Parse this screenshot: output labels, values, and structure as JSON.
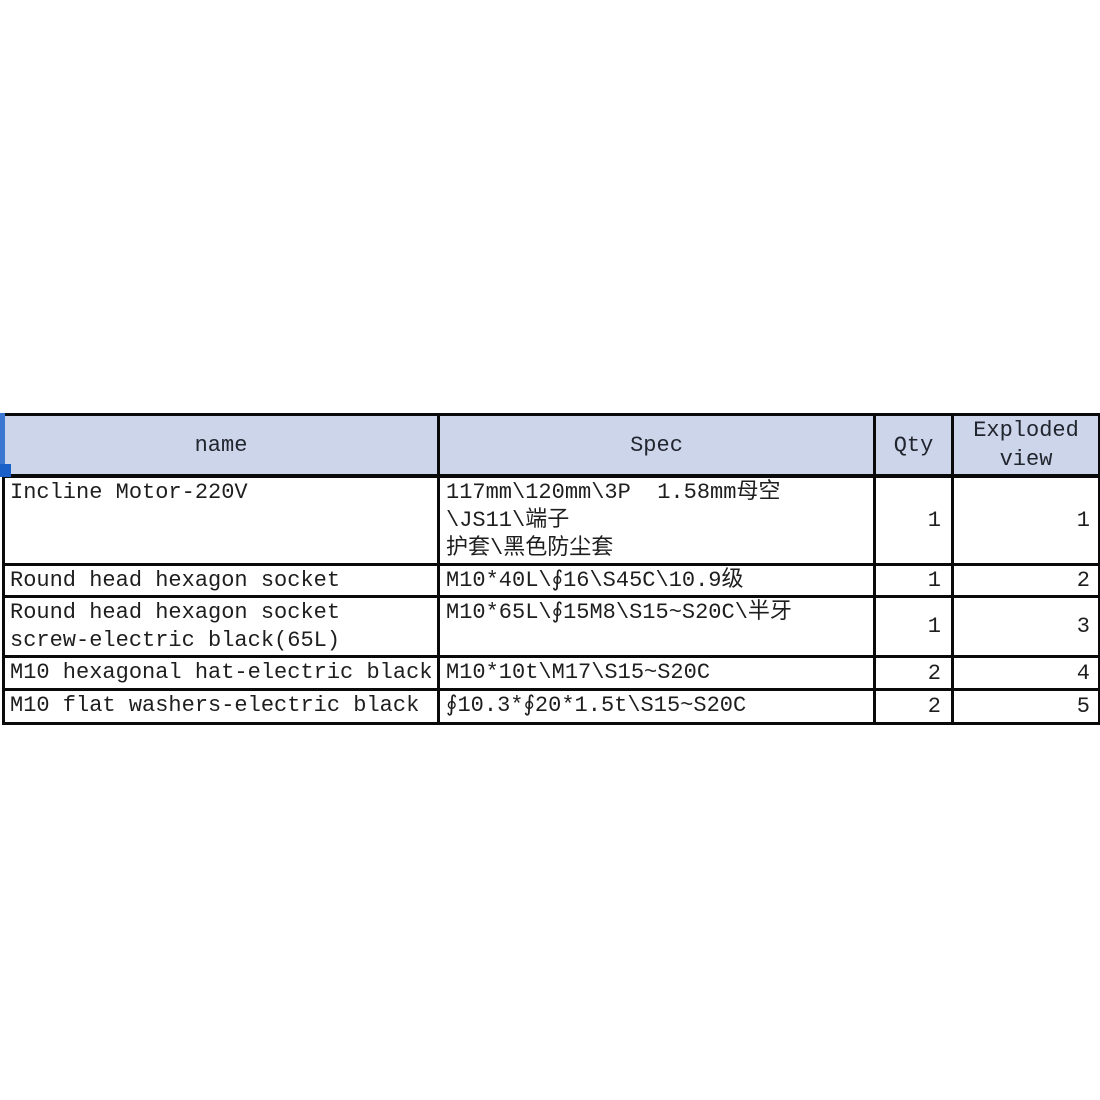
{
  "table": {
    "headers": [
      "name",
      "Spec",
      "Qty",
      "Exploded view"
    ],
    "rows": [
      {
        "name": "Incline Motor-220V",
        "spec": "117mm\\120mm\\3P  1.58mm母空\\JS11\\端子\n护套\\黑色防尘套",
        "qty": "1",
        "view": "1"
      },
      {
        "name": "Round head hexagon socket",
        "spec": "M10*40L\\∮16\\S45C\\10.9级",
        "qty": "1",
        "view": "2"
      },
      {
        "name": "Round head hexagon socket\nscrew-electric black(65L)",
        "spec": "M10*65L\\∮15M8\\S15~S20C\\半牙",
        "qty": "1",
        "view": "3"
      },
      {
        "name": "M10 hexagonal hat-electric black",
        "spec": "M10*10t\\M17\\S15~S20C",
        "qty": "2",
        "view": "4"
      },
      {
        "name": "M10 flat washers-electric black",
        "spec": "∮10.3*∮20*1.5t\\S15~S20C",
        "qty": "2",
        "view": "5"
      }
    ]
  },
  "colors": {
    "header_bg": "#cdd5ea",
    "border": "#0a0a0a",
    "text": "#1e1e1e",
    "selection_strip": "#3c77d2",
    "selection_handle": "#1b5fc8"
  }
}
